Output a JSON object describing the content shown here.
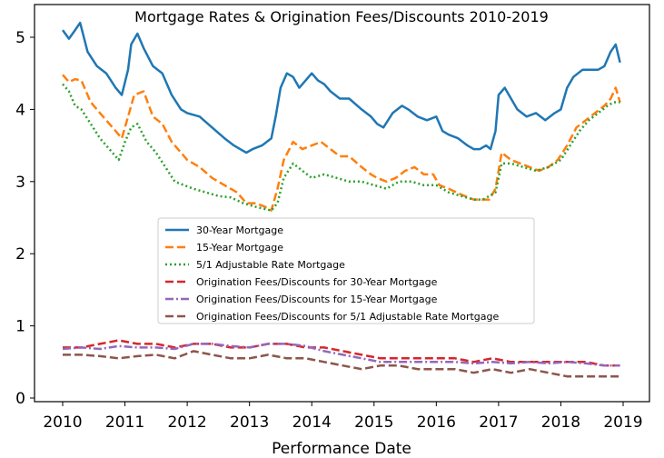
{
  "chart_data": {
    "type": "line",
    "title": "Mortgage Rates & Origination Fees/Discounts 2010-2019",
    "xlabel": "Performance Date",
    "ylabel": "",
    "xlim": [
      2010.0,
      2019.0
    ],
    "ylim": [
      -0.05,
      5.4
    ],
    "x_ticks": [
      "2010",
      "2011",
      "2012",
      "2013",
      "2014",
      "2015",
      "2016",
      "2017",
      "2018",
      "2019"
    ],
    "y_ticks": [
      "0",
      "1",
      "2",
      "3",
      "4",
      "5"
    ],
    "grid": false,
    "legend_position": "center",
    "series": [
      {
        "name": "30-Year Mortgage",
        "color": "#1f77b4",
        "style": "solid",
        "x": [
          2010.0,
          2010.1,
          2010.2,
          2010.28,
          2010.4,
          2010.55,
          2010.7,
          2010.85,
          2010.95,
          2011.05,
          2011.1,
          2011.2,
          2011.3,
          2011.45,
          2011.6,
          2011.75,
          2011.9,
          2012.0,
          2012.2,
          2012.4,
          2012.6,
          2012.75,
          2012.85,
          2012.95,
          2013.05,
          2013.2,
          2013.35,
          2013.42,
          2013.5,
          2013.6,
          2013.7,
          2013.8,
          2013.9,
          2014.0,
          2014.1,
          2014.2,
          2014.3,
          2014.45,
          2014.6,
          2014.8,
          2014.95,
          2015.05,
          2015.15,
          2015.3,
          2015.45,
          2015.55,
          2015.7,
          2015.85,
          2016.0,
          2016.1,
          2016.2,
          2016.35,
          2016.5,
          2016.6,
          2016.7,
          2016.8,
          2016.87,
          2016.95,
          2017.0,
          2017.1,
          2017.2,
          2017.3,
          2017.45,
          2017.6,
          2017.75,
          2017.9,
          2018.0,
          2018.1,
          2018.2,
          2018.35,
          2018.5,
          2018.6,
          2018.7,
          2018.8,
          2018.88,
          2018.95
        ],
        "y": [
          5.1,
          4.98,
          5.1,
          5.2,
          4.8,
          4.6,
          4.5,
          4.3,
          4.2,
          4.55,
          4.9,
          5.05,
          4.85,
          4.6,
          4.5,
          4.2,
          4.0,
          3.95,
          3.9,
          3.75,
          3.6,
          3.5,
          3.45,
          3.4,
          3.45,
          3.5,
          3.6,
          3.9,
          4.3,
          4.5,
          4.45,
          4.3,
          4.4,
          4.5,
          4.4,
          4.35,
          4.25,
          4.15,
          4.15,
          4.0,
          3.9,
          3.8,
          3.75,
          3.95,
          4.05,
          4.0,
          3.9,
          3.85,
          3.9,
          3.7,
          3.65,
          3.6,
          3.5,
          3.45,
          3.45,
          3.5,
          3.45,
          3.7,
          4.2,
          4.3,
          4.15,
          4.0,
          3.9,
          3.95,
          3.85,
          3.95,
          4.0,
          4.3,
          4.45,
          4.55,
          4.55,
          4.55,
          4.6,
          4.8,
          4.9,
          4.65
        ]
      },
      {
        "name": "15-Year Mortgage",
        "color": "#ff7f0e",
        "style": "dashed",
        "x": [
          2010.0,
          2010.1,
          2010.2,
          2010.3,
          2010.45,
          2010.6,
          2010.75,
          2010.85,
          2010.95,
          2011.05,
          2011.15,
          2011.3,
          2011.45,
          2011.6,
          2011.75,
          2011.9,
          2012.0,
          2012.2,
          2012.4,
          2012.6,
          2012.8,
          2012.95,
          2013.1,
          2013.25,
          2013.35,
          2013.45,
          2013.55,
          2013.7,
          2013.85,
          2014.0,
          2014.15,
          2014.3,
          2014.45,
          2014.6,
          2014.8,
          2014.95,
          2015.05,
          2015.2,
          2015.35,
          2015.5,
          2015.65,
          2015.8,
          2015.95,
          2016.05,
          2016.2,
          2016.4,
          2016.6,
          2016.75,
          2016.85,
          2016.95,
          2017.05,
          2017.2,
          2017.35,
          2017.5,
          2017.65,
          2017.8,
          2017.95,
          2018.1,
          2018.25,
          2018.4,
          2018.55,
          2018.7,
          2018.8,
          2018.88,
          2018.95
        ],
        "y": [
          4.48,
          4.38,
          4.42,
          4.4,
          4.1,
          3.95,
          3.8,
          3.7,
          3.6,
          3.9,
          4.2,
          4.25,
          3.9,
          3.8,
          3.55,
          3.4,
          3.3,
          3.2,
          3.05,
          2.95,
          2.85,
          2.7,
          2.7,
          2.65,
          2.6,
          2.9,
          3.3,
          3.55,
          3.45,
          3.5,
          3.55,
          3.45,
          3.35,
          3.35,
          3.2,
          3.1,
          3.05,
          3.0,
          3.05,
          3.15,
          3.2,
          3.1,
          3.1,
          2.95,
          2.9,
          2.82,
          2.75,
          2.75,
          2.75,
          2.9,
          3.4,
          3.3,
          3.25,
          3.2,
          3.15,
          3.2,
          3.3,
          3.5,
          3.75,
          3.85,
          3.95,
          4.05,
          4.15,
          4.3,
          4.1
        ]
      },
      {
        "name": "5/1 Adjustable Rate Mortgage",
        "color": "#2ca02c",
        "style": "dotted",
        "x": [
          2010.0,
          2010.1,
          2010.2,
          2010.3,
          2010.45,
          2010.6,
          2010.75,
          2010.85,
          2010.9,
          2011.0,
          2011.1,
          2011.2,
          2011.35,
          2011.5,
          2011.65,
          2011.8,
          2011.95,
          2012.1,
          2012.3,
          2012.5,
          2012.7,
          2012.9,
          2013.1,
          2013.25,
          2013.35,
          2013.45,
          2013.55,
          2013.7,
          2013.85,
          2014.0,
          2014.2,
          2014.4,
          2014.6,
          2014.8,
          2015.0,
          2015.2,
          2015.4,
          2015.6,
          2015.8,
          2016.0,
          2016.2,
          2016.4,
          2016.6,
          2016.75,
          2016.85,
          2016.95,
          2017.05,
          2017.2,
          2017.4,
          2017.6,
          2017.8,
          2018.0,
          2018.15,
          2018.3,
          2018.45,
          2018.6,
          2018.75,
          2018.85,
          2018.95
        ],
        "y": [
          4.35,
          4.25,
          4.05,
          4.0,
          3.8,
          3.6,
          3.45,
          3.35,
          3.3,
          3.55,
          3.75,
          3.8,
          3.55,
          3.4,
          3.2,
          3.0,
          2.95,
          2.9,
          2.85,
          2.8,
          2.78,
          2.7,
          2.65,
          2.62,
          2.6,
          2.7,
          3.05,
          3.25,
          3.15,
          3.05,
          3.1,
          3.05,
          3.0,
          3.0,
          2.95,
          2.9,
          3.0,
          3.0,
          2.95,
          2.95,
          2.85,
          2.8,
          2.75,
          2.75,
          2.8,
          2.85,
          3.25,
          3.25,
          3.2,
          3.15,
          3.2,
          3.3,
          3.5,
          3.7,
          3.85,
          3.95,
          4.05,
          4.1,
          4.1
        ]
      },
      {
        "name": "Origination Fees/Discounts for 30-Year Mortgage",
        "color": "#d62728",
        "style": "dashed",
        "x": [
          2010.0,
          2010.3,
          2010.6,
          2010.9,
          2011.2,
          2011.5,
          2011.8,
          2012.1,
          2012.4,
          2012.7,
          2013.0,
          2013.3,
          2013.6,
          2013.9,
          2014.2,
          2014.5,
          2014.8,
          2015.1,
          2015.4,
          2015.7,
          2016.0,
          2016.3,
          2016.6,
          2016.9,
          2017.2,
          2017.5,
          2017.8,
          2018.1,
          2018.4,
          2018.7,
          2018.95
        ],
        "y": [
          0.7,
          0.7,
          0.75,
          0.8,
          0.75,
          0.75,
          0.7,
          0.75,
          0.75,
          0.7,
          0.7,
          0.75,
          0.75,
          0.7,
          0.7,
          0.65,
          0.6,
          0.55,
          0.55,
          0.55,
          0.55,
          0.55,
          0.5,
          0.55,
          0.5,
          0.5,
          0.5,
          0.5,
          0.5,
          0.45,
          0.45
        ]
      },
      {
        "name": "Origination Fees/Discounts for 15-Year Mortgage",
        "color": "#9467bd",
        "style": "dashdot",
        "x": [
          2010.0,
          2010.3,
          2010.6,
          2010.9,
          2011.2,
          2011.5,
          2011.8,
          2012.1,
          2012.4,
          2012.7,
          2013.0,
          2013.3,
          2013.6,
          2013.9,
          2014.2,
          2014.5,
          2014.8,
          2015.1,
          2015.4,
          2015.7,
          2016.0,
          2016.3,
          2016.6,
          2016.9,
          2017.2,
          2017.5,
          2017.8,
          2018.1,
          2018.4,
          2018.7,
          2018.95
        ],
        "y": [
          0.68,
          0.7,
          0.68,
          0.72,
          0.7,
          0.7,
          0.68,
          0.75,
          0.75,
          0.72,
          0.7,
          0.75,
          0.75,
          0.72,
          0.65,
          0.6,
          0.55,
          0.5,
          0.5,
          0.5,
          0.5,
          0.5,
          0.48,
          0.5,
          0.48,
          0.5,
          0.48,
          0.5,
          0.48,
          0.45,
          0.45
        ]
      },
      {
        "name": "Origination Fees/Discounts for 5/1 Adjustable Rate Mortgage",
        "color": "#8c564b",
        "style": "dashed",
        "x": [
          2010.0,
          2010.3,
          2010.6,
          2010.9,
          2011.2,
          2011.5,
          2011.8,
          2012.1,
          2012.4,
          2012.7,
          2013.0,
          2013.3,
          2013.6,
          2013.9,
          2014.2,
          2014.5,
          2014.8,
          2015.1,
          2015.4,
          2015.7,
          2016.0,
          2016.3,
          2016.6,
          2016.9,
          2017.2,
          2017.5,
          2017.8,
          2018.1,
          2018.4,
          2018.7,
          2018.95
        ],
        "y": [
          0.6,
          0.6,
          0.58,
          0.55,
          0.58,
          0.6,
          0.55,
          0.65,
          0.6,
          0.55,
          0.55,
          0.6,
          0.55,
          0.55,
          0.5,
          0.45,
          0.4,
          0.45,
          0.45,
          0.4,
          0.4,
          0.4,
          0.35,
          0.4,
          0.35,
          0.4,
          0.35,
          0.3,
          0.3,
          0.3,
          0.3
        ]
      }
    ]
  }
}
